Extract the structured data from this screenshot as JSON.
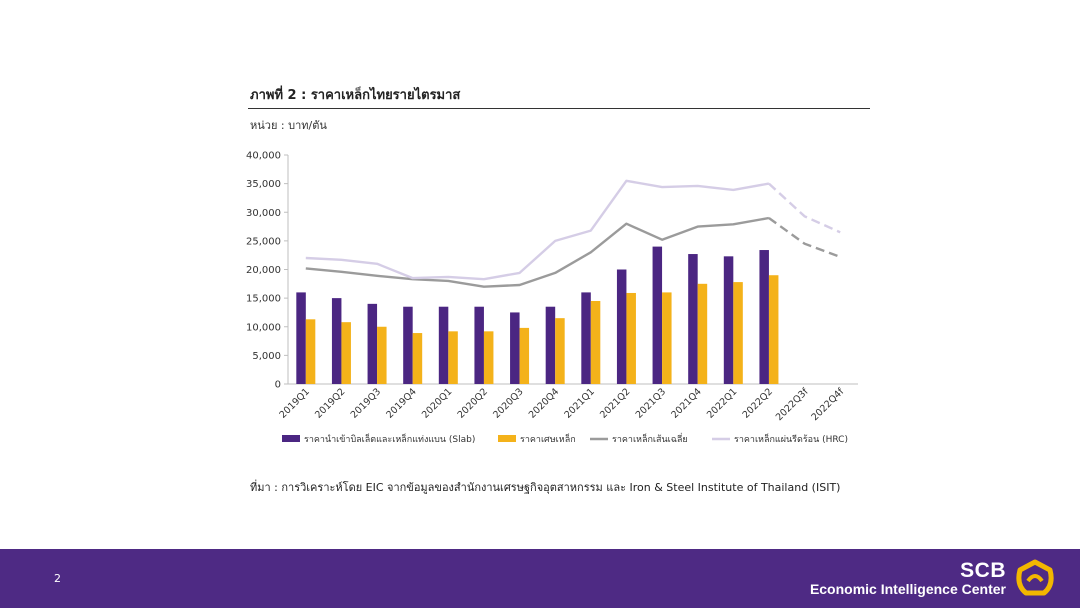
{
  "slide": {
    "title": "ภาพที่ 2 : ราคาเหล็กไทยรายไตรมาส",
    "unit": "หน่วย : บาท/ตัน",
    "source": "ที่มา : การวิเคราะห์โดย EIC จากข้อมูลของสำนักงานเศรษฐกิจอุตสาหกรรม และ Iron & Steel Institute of Thailand (ISIT)"
  },
  "footer": {
    "page_number": "2",
    "brand": "SCB",
    "brand_sub": "Economic Intelligence Center",
    "color": "#4e2a84",
    "logo_color": "#f2b700",
    "logo_icon": "scb-logo-icon"
  },
  "chart_data": {
    "type": "bar",
    "title": "ภาพที่ 2 : ราคาเหล็กไทยรายไตรมาส",
    "xlabel": "",
    "ylabel": "หน่วย : บาท/ตัน",
    "ylim": [
      0,
      40000
    ],
    "yticks": [
      "0",
      "5,000",
      "10,000",
      "15,000",
      "20,000",
      "25,000",
      "30,000",
      "35,000",
      "40,000"
    ],
    "grid": false,
    "legend_position": "bottom",
    "categories": [
      "2019Q1",
      "2019Q2",
      "2019Q3",
      "2019Q4",
      "2020Q1",
      "2020Q2",
      "2020Q3",
      "2020Q4",
      "2021Q1",
      "2021Q2",
      "2021Q3",
      "2021Q4",
      "2022Q1",
      "2022Q2",
      "2022Q3f",
      "2022Q4f"
    ],
    "series": [
      {
        "name": "ราคานำเข้าบิลเล็ตและเหล็กแท่งแบน (Slab)",
        "type": "bar",
        "color": "#4b2682",
        "values": [
          16000,
          15000,
          14000,
          13500,
          13500,
          13500,
          12500,
          13500,
          16000,
          20000,
          24000,
          22700,
          22300,
          23400,
          null,
          null
        ]
      },
      {
        "name": "ราคาเศษเหล็ก",
        "type": "bar",
        "color": "#f4b21a",
        "values": [
          11300,
          10800,
          10000,
          8900,
          9200,
          9200,
          9800,
          11500,
          14500,
          15900,
          16000,
          17500,
          17800,
          19000,
          null,
          null
        ]
      },
      {
        "name": "ราคาเหล็กเส้นเฉลี่ย",
        "type": "line",
        "color": "#9b9b9b",
        "forecast_from": "2022Q2",
        "values": [
          20200,
          19600,
          18900,
          18300,
          18000,
          17000,
          17300,
          19400,
          23000,
          28000,
          25200,
          27500,
          27900,
          29000,
          24500,
          22200
        ]
      },
      {
        "name": "ราคาเหล็กแผ่นรีดร้อน (HRC)",
        "type": "line",
        "color": "#d5cde6",
        "forecast_from": "2022Q2",
        "values": [
          22000,
          21700,
          21000,
          18500,
          18700,
          18300,
          19400,
          25000,
          26800,
          35500,
          34400,
          34600,
          33900,
          35000,
          29300,
          26500
        ]
      }
    ]
  }
}
